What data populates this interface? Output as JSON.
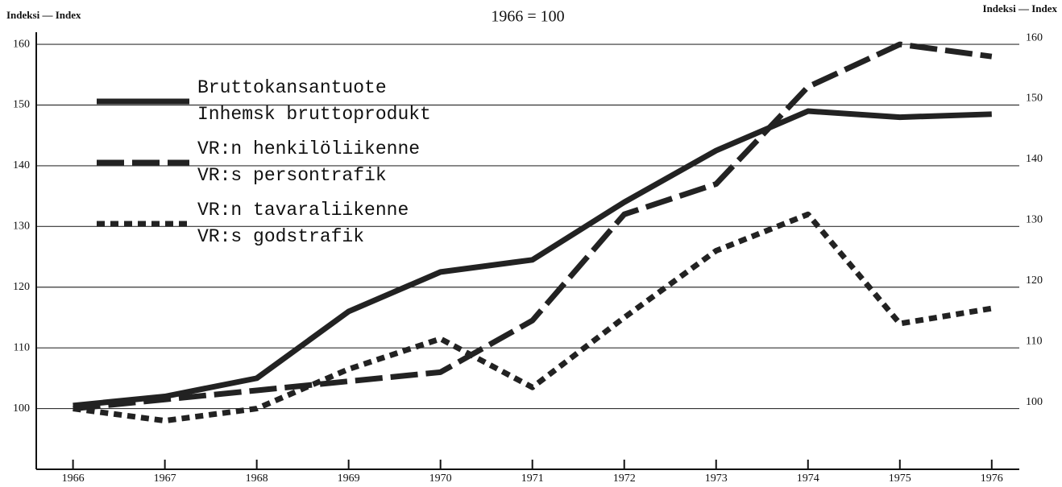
{
  "chart_data": {
    "type": "line",
    "title": "1966 = 100",
    "y_label": "Indeksi — Index",
    "y2_label": "Indeksi — Index",
    "x": [
      1966,
      1967,
      1968,
      1969,
      1970,
      1971,
      1972,
      1973,
      1974,
      1975,
      1976
    ],
    "xlim": [
      1965.6,
      1976.3
    ],
    "xticks": [
      1966,
      1967,
      1968,
      1969,
      1970,
      1971,
      1972,
      1973,
      1974,
      1975,
      1976
    ],
    "ylim": [
      90,
      162
    ],
    "yticks": [
      100,
      110,
      120,
      130,
      140,
      150,
      160
    ],
    "grid": true,
    "series": [
      {
        "name": "Bruttokansantuote",
        "name_sv": "Inhemsk bruttoprodukt",
        "color": "#222222",
        "dash": "solid",
        "values": [
          100.5,
          102,
          105,
          116,
          122.5,
          124.5,
          134,
          142.5,
          149,
          148,
          148.5
        ]
      },
      {
        "name": "VR:n henkilöliikenne",
        "name_sv": "VR:s persontrafik",
        "color": "#222222",
        "dash": "long",
        "values": [
          100,
          101.5,
          103,
          104.5,
          106,
          114.5,
          132,
          137,
          153,
          160,
          158
        ]
      },
      {
        "name": "VR:n tavaraliikenne",
        "name_sv": "VR:s godstrafik",
        "color": "#222222",
        "dash": "short",
        "values": [
          100,
          98,
          100,
          106.5,
          111.5,
          103.5,
          115,
          126,
          132,
          114,
          116.5
        ]
      }
    ]
  }
}
